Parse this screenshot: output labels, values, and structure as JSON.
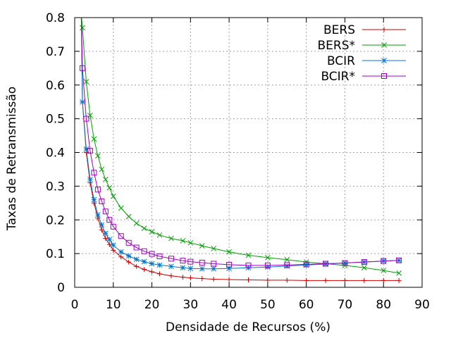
{
  "chart_data": {
    "type": "line",
    "xlabel": "Densidade de Recursos (%)",
    "ylabel": "Taxas de Retransmissão",
    "xlim": [
      0,
      90
    ],
    "ylim": [
      0,
      0.8
    ],
    "xticks": [
      "0",
      "10",
      "20",
      "30",
      "40",
      "50",
      "60",
      "70",
      "80",
      "90"
    ],
    "yticks": [
      "0",
      "0.1",
      "0.2",
      "0.3",
      "0.4",
      "0.5",
      "0.6",
      "0.7",
      "0.8"
    ],
    "grid": true,
    "legend_position": "top-right",
    "x": [
      2,
      3,
      4,
      5,
      6,
      7,
      8,
      9,
      10,
      12,
      14,
      16,
      18,
      20,
      22,
      25,
      28,
      30,
      33,
      36,
      40,
      45,
      50,
      55,
      60,
      65,
      70,
      75,
      80,
      84
    ],
    "series": [
      {
        "name": "BERS",
        "color": "#cc0000",
        "marker": "plus",
        "values": [
          0.55,
          0.4,
          0.31,
          0.25,
          0.205,
          0.17,
          0.145,
          0.127,
          0.11,
          0.09,
          0.075,
          0.062,
          0.053,
          0.046,
          0.04,
          0.034,
          0.03,
          0.028,
          0.026,
          0.024,
          0.023,
          0.022,
          0.021,
          0.021,
          0.02,
          0.02,
          0.02,
          0.02,
          0.02,
          0.02
        ]
      },
      {
        "name": "BERS*",
        "color": "#00a000",
        "marker": "cross",
        "values": [
          0.77,
          0.61,
          0.51,
          0.44,
          0.39,
          0.35,
          0.32,
          0.295,
          0.27,
          0.235,
          0.21,
          0.19,
          0.175,
          0.165,
          0.155,
          0.145,
          0.138,
          0.132,
          0.123,
          0.115,
          0.105,
          0.095,
          0.088,
          0.082,
          0.075,
          0.07,
          0.065,
          0.058,
          0.05,
          0.042
        ]
      },
      {
        "name": "BCIR",
        "color": "#0077cc",
        "marker": "star",
        "values": [
          0.55,
          0.41,
          0.32,
          0.26,
          0.215,
          0.185,
          0.16,
          0.142,
          0.125,
          0.105,
          0.093,
          0.083,
          0.076,
          0.07,
          0.066,
          0.062,
          0.058,
          0.056,
          0.055,
          0.055,
          0.056,
          0.058,
          0.06,
          0.063,
          0.066,
          0.069,
          0.072,
          0.075,
          0.078,
          0.08
        ]
      },
      {
        "name": "BCIR*",
        "color": "#a000c0",
        "marker": "square",
        "values": [
          0.65,
          0.5,
          0.405,
          0.34,
          0.29,
          0.255,
          0.225,
          0.2,
          0.18,
          0.152,
          0.132,
          0.118,
          0.107,
          0.099,
          0.092,
          0.085,
          0.079,
          0.076,
          0.073,
          0.07,
          0.067,
          0.065,
          0.065,
          0.066,
          0.068,
          0.07,
          0.072,
          0.075,
          0.078,
          0.08
        ]
      }
    ]
  }
}
